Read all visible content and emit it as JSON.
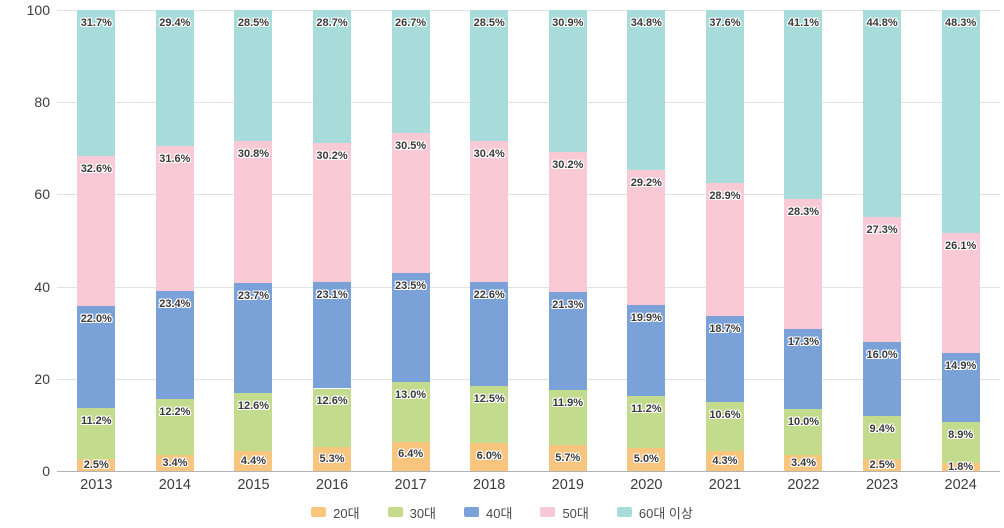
{
  "chart_data": {
    "type": "bar",
    "stacked": true,
    "title": "",
    "xlabel": "",
    "ylabel": "",
    "categories": [
      "2013",
      "2014",
      "2015",
      "2016",
      "2017",
      "2018",
      "2019",
      "2020",
      "2021",
      "2022",
      "2023",
      "2024"
    ],
    "series": [
      {
        "name": "20대",
        "color": "#F8C57E",
        "values": [
          2.5,
          3.4,
          4.4,
          5.3,
          6.4,
          6.0,
          5.7,
          5.0,
          4.3,
          3.4,
          2.5,
          1.8
        ]
      },
      {
        "name": "30대",
        "color": "#C3DB8D",
        "values": [
          11.2,
          12.2,
          12.6,
          12.6,
          13.0,
          12.5,
          11.9,
          11.2,
          10.6,
          10.0,
          9.4,
          8.9
        ]
      },
      {
        "name": "40대",
        "color": "#7AA2D9",
        "values": [
          22.0,
          23.4,
          23.7,
          23.1,
          23.5,
          22.6,
          21.3,
          19.9,
          18.7,
          17.3,
          16.0,
          14.9
        ]
      },
      {
        "name": "50대",
        "color": "#F9CAD5",
        "values": [
          32.6,
          31.6,
          30.8,
          30.2,
          30.5,
          30.4,
          30.2,
          29.2,
          28.9,
          28.3,
          27.3,
          26.1
        ]
      },
      {
        "name": "60대 이상",
        "color": "#A7DCDA",
        "values": [
          31.7,
          29.4,
          28.5,
          28.7,
          26.7,
          28.5,
          30.9,
          34.8,
          37.6,
          41.1,
          44.8,
          48.3
        ]
      }
    ],
    "ylim": [
      0,
      100
    ],
    "yticks": [
      0,
      20,
      40,
      60,
      80,
      100
    ],
    "grid": true,
    "value_suffix": "%",
    "legend_position": "bottom",
    "colors": {
      "gridline": "#e2e2e2",
      "axis_line": "#b3b3b3",
      "tick_label": "#3c3c3c",
      "value_label": "#3a3a3a",
      "legend_label": "#4a4a4a",
      "background": "#ffffff"
    }
  }
}
